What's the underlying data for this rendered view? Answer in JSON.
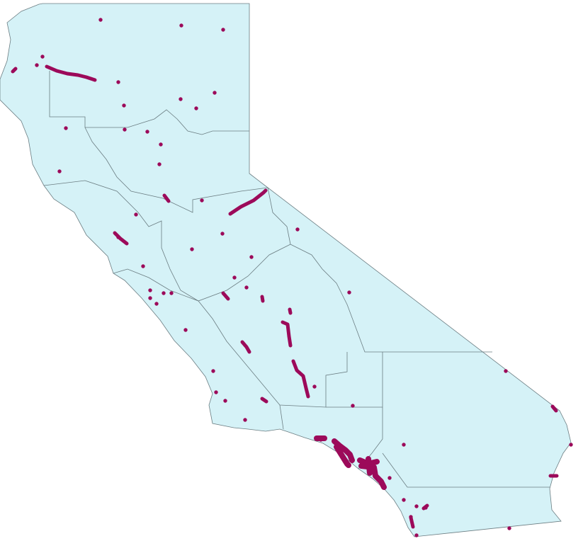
{
  "map": {
    "land_color": "#d5f2f7",
    "border_color": "#6b7d82",
    "marker_color": "#9c0a5a",
    "background_color": "#ffffff"
  }
}
